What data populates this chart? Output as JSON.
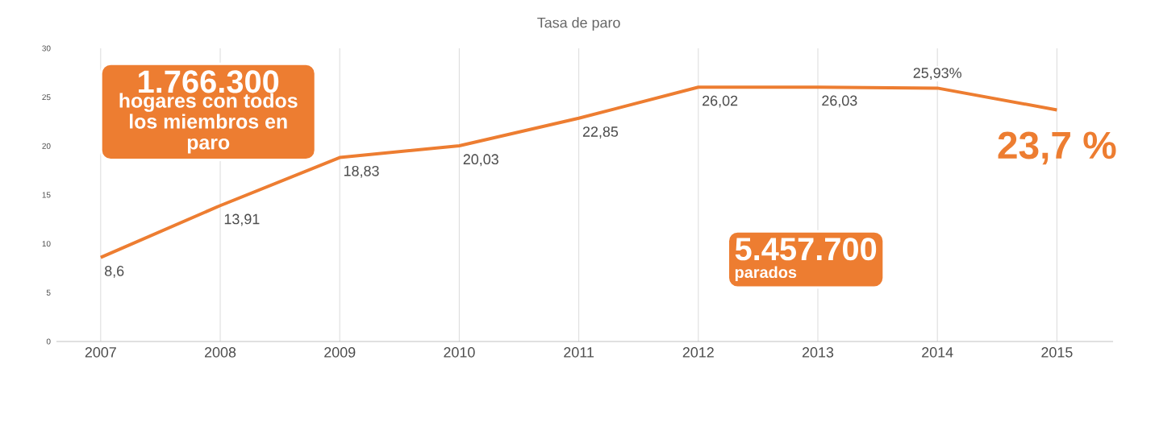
{
  "chart_data": {
    "type": "line",
    "title": "Tasa de paro",
    "categories": [
      "2007",
      "2008",
      "2009",
      "2010",
      "2011",
      "2012",
      "2013",
      "2014",
      "2015"
    ],
    "series": [
      {
        "color": "#ed7d31",
        "values": [
          8.6,
          13.91,
          18.83,
          20.03,
          22.85,
          26.02,
          26.03,
          25.93,
          23.7
        ]
      }
    ],
    "value_labels": [
      "8,6",
      "13,91",
      "18,83",
      "20,03",
      "22,85",
      "26,02",
      "26,03",
      "25,93%",
      "23,7 %"
    ],
    "ylim": [
      0,
      30
    ],
    "yticks": [
      0,
      5,
      10,
      15,
      20,
      25,
      30
    ],
    "grid": "x",
    "annotations": [
      "1.766.300",
      "hogares con todos los miembros en paro",
      "5.457.700",
      "parados"
    ]
  }
}
